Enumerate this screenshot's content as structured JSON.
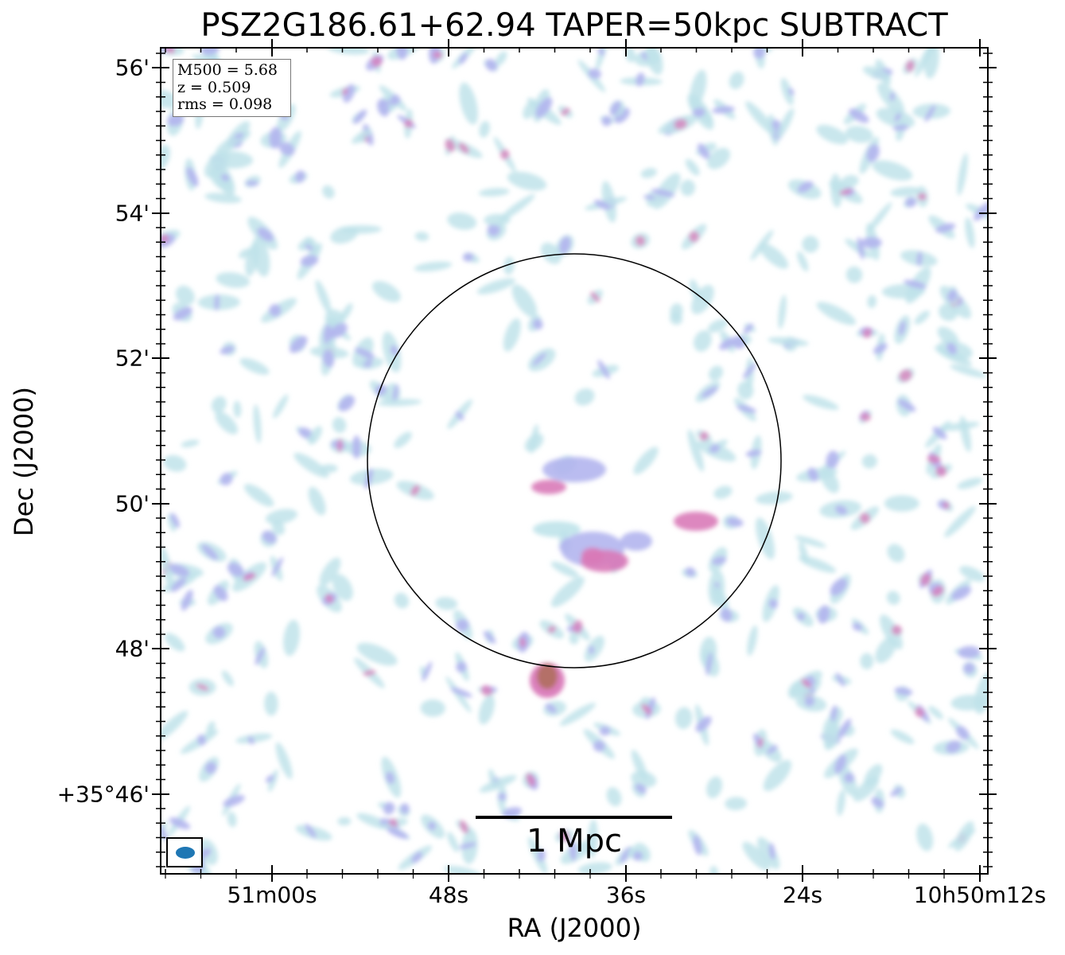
{
  "figure": {
    "title": "PSZ2G186.61+62.94 TAPER=50kpc SUBTRACT",
    "xlabel": "RA (J2000)",
    "ylabel": "Dec (J2000)",
    "xtick_labels": [
      "51m00s",
      "48s",
      "36s",
      "24s",
      "10h50m12s"
    ],
    "ytick_labels": [
      "56'",
      "54'",
      "52'",
      "50'",
      "48'",
      "+35°46'"
    ],
    "info": {
      "mass": "M500 = 5.68",
      "redshift": "z = 0.509",
      "rms": "rms = 0.098"
    },
    "scale_bar_label": "1 Mpc",
    "colors": {
      "low_emission": "#bfe3ea",
      "mid_emission": "#b3b5ee",
      "high_emission": "#d97ab8",
      "peak_emission": "#b07060",
      "beam": "#1f77b4"
    }
  }
}
